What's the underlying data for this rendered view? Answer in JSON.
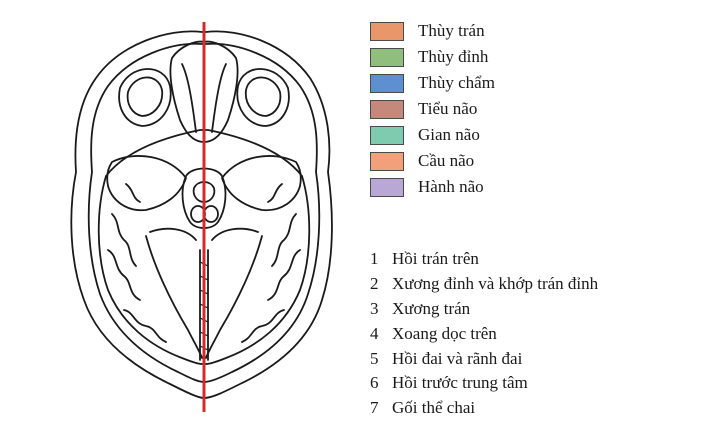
{
  "legend": {
    "items": [
      {
        "label": "Thùy trán",
        "color": "#e9966a"
      },
      {
        "label": "Thùy đỉnh",
        "color": "#8fbe7d"
      },
      {
        "label": "Thùy chẩm",
        "color": "#5e8fd0"
      },
      {
        "label": "Tiểu não",
        "color": "#c4897a"
      },
      {
        "label": "Gian não",
        "color": "#7fcbb0"
      },
      {
        "label": "Cầu não",
        "color": "#f2a07a"
      },
      {
        "label": "Hành não",
        "color": "#b9a8d6"
      }
    ]
  },
  "numbered_list": {
    "items": [
      {
        "number": "1",
        "text": "Hồi trán trên"
      },
      {
        "number": "2",
        "text": "Xương đỉnh và khớp trán đỉnh"
      },
      {
        "number": "3",
        "text": "Xương trán"
      },
      {
        "number": "4",
        "text": "Xoang dọc trên"
      },
      {
        "number": "5",
        "text": "Hồi đai và rãnh đai"
      },
      {
        "number": "6",
        "text": "Hồi trước trung tâm"
      },
      {
        "number": "7",
        "text": "Gối thể chai"
      }
    ]
  },
  "colors": {
    "line_drawing": "#1a1a1a",
    "midline": "#d42a2a"
  }
}
